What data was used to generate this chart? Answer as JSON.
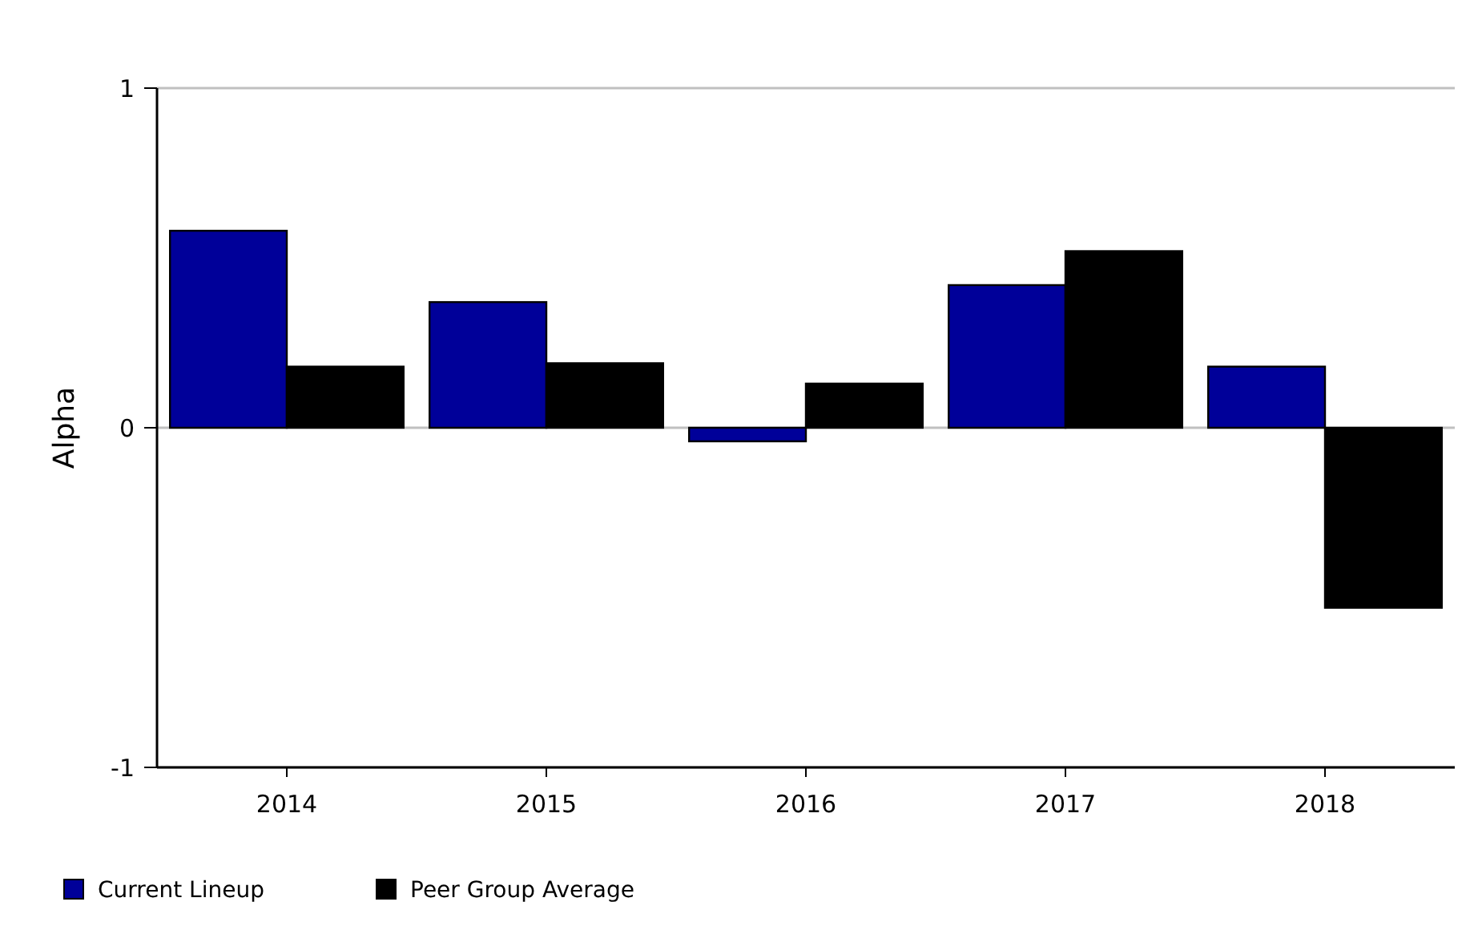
{
  "chart_data": {
    "type": "bar",
    "ylabel": "Alpha",
    "categories": [
      "2014",
      "2015",
      "2016",
      "2017",
      "2018"
    ],
    "series": [
      {
        "name": "Current Lineup",
        "color": "#000099",
        "values": [
          0.58,
          0.37,
          -0.04,
          0.42,
          0.18
        ]
      },
      {
        "name": "Peer Group Average",
        "color": "#000000",
        "values": [
          0.18,
          0.19,
          0.13,
          0.52,
          -0.53
        ]
      }
    ],
    "ylim": [
      -1,
      1
    ],
    "yticks": [
      -1,
      0,
      1
    ],
    "grid": "y",
    "legend": "bottom left"
  }
}
